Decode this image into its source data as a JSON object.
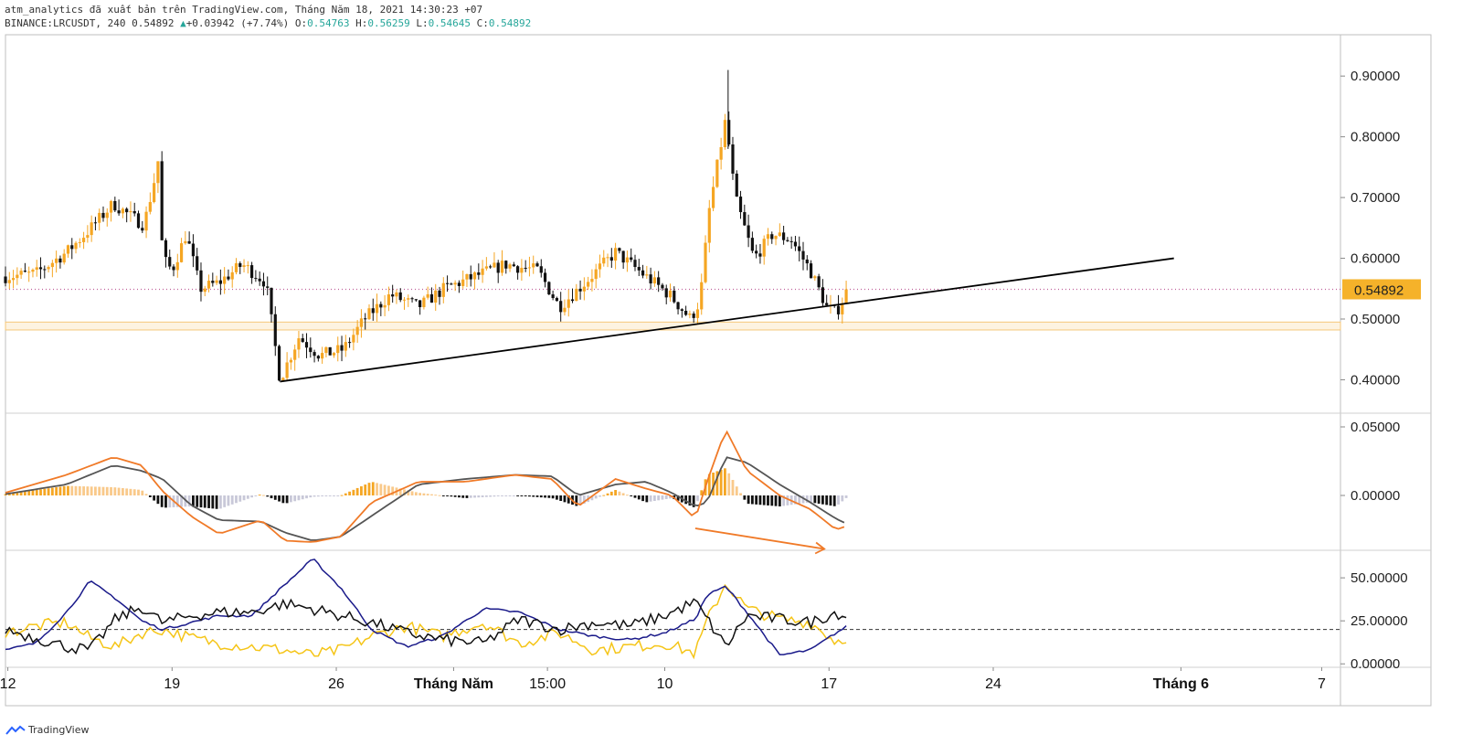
{
  "header": {
    "publisher_line": "atm_analytics đã xuất bản trên TradingView.com, Tháng Năm 18, 2021 14:30:23 +07",
    "symbol": "BINANCE:LRCUSDT, 240",
    "last": "0.54892",
    "change": "+0.03942 (+7.74%)",
    "o_label": "O:",
    "o_value": "0.54763",
    "h_label": "H:",
    "h_value": "0.56259",
    "l_label": "L:",
    "l_value": "0.54645",
    "c_label": "C:",
    "c_value": "0.54892"
  },
  "brand": {
    "label": "TradingView"
  },
  "colors": {
    "bull": "#f5a623",
    "bear": "#111111",
    "macd_line": "#f07a28",
    "signal_line": "#555555",
    "hist_pos": "#f5a623",
    "hist_neg": "#111111",
    "hist_faded": "#c8c8d8",
    "di_plus": "#f5c518",
    "di_minus": "#1a1a8a",
    "adx": "#111111",
    "support_band": "#f5c77a",
    "price_dot": "#c0609a",
    "price_tag_bg": "#f5b22a"
  },
  "chart_data": [
    {
      "type": "candlestick",
      "panel": "price",
      "y_ticks": [
        "0.90000",
        "0.80000",
        "0.70000",
        "0.60000",
        "0.50000",
        "0.40000"
      ],
      "ylim": [
        0.345,
        0.965
      ],
      "current_price_label": "0.54892",
      "current_price": 0.54892,
      "x_ticks": [
        {
          "label": "12",
          "day": 12
        },
        {
          "label": "19",
          "day": 19
        },
        {
          "label": "26",
          "day": 26
        },
        {
          "label": "Tháng Năm",
          "day": 31,
          "bold": true
        },
        {
          "label": "15:00",
          "day": 35
        },
        {
          "label": "10",
          "day": 40
        },
        {
          "label": "17",
          "day": 47
        },
        {
          "label": "24",
          "day": 54
        },
        {
          "label": "Tháng 6",
          "day": 62,
          "bold": true
        },
        {
          "label": "7",
          "day": 68
        }
      ],
      "xlim_days": [
        11.9,
        68.8
      ],
      "trendline": [
        {
          "day": 23.6,
          "price": 0.397
        },
        {
          "day": 61.7,
          "price": 0.6
        }
      ],
      "support_zone": [
        0.482,
        0.495
      ],
      "close_anchors": [
        [
          11.9,
          0.57
        ],
        [
          13.2,
          0.575
        ],
        [
          14.5,
          0.61
        ],
        [
          15.3,
          0.64
        ],
        [
          16.5,
          0.69
        ],
        [
          17.2,
          0.67
        ],
        [
          17.8,
          0.655
        ],
        [
          18.2,
          0.72
        ],
        [
          18.4,
          0.76
        ],
        [
          18.6,
          0.6
        ],
        [
          19.0,
          0.58
        ],
        [
          19.6,
          0.64
        ],
        [
          20.2,
          0.55
        ],
        [
          21.0,
          0.56
        ],
        [
          22.0,
          0.59
        ],
        [
          23.0,
          0.56
        ],
        [
          23.6,
          0.4
        ],
        [
          24.4,
          0.47
        ],
        [
          25.3,
          0.44
        ],
        [
          26.3,
          0.45
        ],
        [
          27.2,
          0.5
        ],
        [
          28.3,
          0.54
        ],
        [
          29.5,
          0.52
        ],
        [
          30.6,
          0.55
        ],
        [
          31.9,
          0.57
        ],
        [
          33.2,
          0.59
        ],
        [
          34.6,
          0.58
        ],
        [
          35.5,
          0.52
        ],
        [
          36.6,
          0.56
        ],
        [
          37.9,
          0.61
        ],
        [
          39.2,
          0.57
        ],
        [
          40.2,
          0.54
        ],
        [
          41.1,
          0.5
        ],
        [
          41.5,
          0.53
        ],
        [
          41.9,
          0.68
        ],
        [
          42.6,
          0.83
        ],
        [
          43.0,
          0.7
        ],
        [
          43.8,
          0.6
        ],
        [
          44.6,
          0.64
        ],
        [
          45.4,
          0.63
        ],
        [
          46.2,
          0.58
        ],
        [
          46.9,
          0.52
        ],
        [
          47.3,
          0.51
        ],
        [
          47.8,
          0.549
        ]
      ]
    },
    {
      "type": "line",
      "panel": "macd",
      "y_ticks": [
        "0.05000",
        "0.00000"
      ],
      "ylim": [
        -0.04,
        0.06
      ],
      "series": [
        {
          "role": "macd",
          "points": [
            [
              11.9,
              0.002
            ],
            [
              14.5,
              0.015
            ],
            [
              16.5,
              0.028
            ],
            [
              17.7,
              0.022
            ],
            [
              18.6,
              0.003
            ],
            [
              19.8,
              -0.015
            ],
            [
              21.0,
              -0.028
            ],
            [
              22.8,
              -0.018
            ],
            [
              23.8,
              -0.033
            ],
            [
              25.0,
              -0.034
            ],
            [
              26.2,
              -0.03
            ],
            [
              27.5,
              -0.005
            ],
            [
              29.5,
              0.01
            ],
            [
              31.5,
              0.01
            ],
            [
              33.6,
              0.015
            ],
            [
              35.2,
              0.012
            ],
            [
              36.3,
              -0.008
            ],
            [
              37.9,
              0.012
            ],
            [
              39.2,
              0.005
            ],
            [
              40.3,
              0.0
            ],
            [
              41.3,
              -0.017
            ],
            [
              41.8,
              0.01
            ],
            [
              42.6,
              0.048
            ],
            [
              43.5,
              0.018
            ],
            [
              44.9,
              0.0
            ],
            [
              46.2,
              -0.01
            ],
            [
              47.3,
              -0.025
            ],
            [
              47.8,
              -0.022
            ]
          ]
        },
        {
          "role": "signal",
          "points": [
            [
              11.9,
              0.001
            ],
            [
              14.5,
              0.008
            ],
            [
              16.5,
              0.022
            ],
            [
              17.7,
              0.018
            ],
            [
              18.6,
              0.012
            ],
            [
              19.8,
              -0.007
            ],
            [
              21.0,
              -0.018
            ],
            [
              22.8,
              -0.019
            ],
            [
              23.8,
              -0.027
            ],
            [
              25.0,
              -0.033
            ],
            [
              26.2,
              -0.03
            ],
            [
              27.5,
              -0.015
            ],
            [
              29.5,
              0.008
            ],
            [
              31.5,
              0.012
            ],
            [
              33.6,
              0.015
            ],
            [
              35.2,
              0.014
            ],
            [
              36.3,
              0.0
            ],
            [
              37.9,
              0.008
            ],
            [
              39.2,
              0.01
            ],
            [
              40.3,
              0.002
            ],
            [
              41.3,
              -0.008
            ],
            [
              41.8,
              -0.005
            ],
            [
              42.6,
              0.028
            ],
            [
              43.5,
              0.024
            ],
            [
              44.9,
              0.008
            ],
            [
              46.2,
              -0.005
            ],
            [
              47.3,
              -0.017
            ],
            [
              47.8,
              -0.021
            ]
          ]
        }
      ],
      "annotation": "divergence-arrow"
    },
    {
      "type": "line",
      "panel": "dmi",
      "y_ticks": [
        "50.00000",
        "25.00000",
        "0.00000"
      ],
      "ylim": [
        -2,
        66
      ],
      "dashed_level": 20,
      "series": [
        {
          "role": "+DI",
          "points": [
            [
              11.9,
              18
            ],
            [
              13.2,
              22
            ],
            [
              14.5,
              24
            ],
            [
              15.5,
              15
            ],
            [
              16.6,
              10
            ],
            [
              17.7,
              18
            ],
            [
              18.6,
              20
            ],
            [
              19.8,
              15
            ],
            [
              21.0,
              12
            ],
            [
              22.4,
              10
            ],
            [
              23.8,
              8
            ],
            [
              25.0,
              5
            ],
            [
              26.2,
              8
            ],
            [
              27.5,
              16
            ],
            [
              29.0,
              22
            ],
            [
              30.5,
              16
            ],
            [
              32.3,
              24
            ],
            [
              33.8,
              12
            ],
            [
              35.5,
              18
            ],
            [
              37.0,
              8
            ],
            [
              38.5,
              10
            ],
            [
              40.0,
              12
            ],
            [
              41.3,
              6
            ],
            [
              41.8,
              25
            ],
            [
              42.6,
              47
            ],
            [
              43.5,
              32
            ],
            [
              44.9,
              26
            ],
            [
              46.2,
              24
            ],
            [
              47.3,
              13
            ],
            [
              47.8,
              16
            ]
          ]
        },
        {
          "role": "-DI",
          "points": [
            [
              11.9,
              8
            ],
            [
              13.2,
              12
            ],
            [
              14.5,
              30
            ],
            [
              15.5,
              48
            ],
            [
              16.6,
              38
            ],
            [
              17.7,
              25
            ],
            [
              18.6,
              20
            ],
            [
              19.8,
              24
            ],
            [
              21.0,
              28
            ],
            [
              22.4,
              28
            ],
            [
              23.8,
              46
            ],
            [
              25.0,
              61
            ],
            [
              26.2,
              44
            ],
            [
              27.5,
              20
            ],
            [
              29.0,
              10
            ],
            [
              30.5,
              16
            ],
            [
              32.3,
              32
            ],
            [
              33.8,
              30
            ],
            [
              35.5,
              20
            ],
            [
              37.0,
              16
            ],
            [
              38.5,
              14
            ],
            [
              40.0,
              18
            ],
            [
              41.3,
              26
            ],
            [
              41.8,
              40
            ],
            [
              42.6,
              45
            ],
            [
              43.5,
              30
            ],
            [
              44.9,
              5
            ],
            [
              46.2,
              8
            ],
            [
              47.3,
              18
            ],
            [
              47.8,
              22
            ]
          ]
        },
        {
          "role": "ADX",
          "points": [
            [
              11.9,
              20
            ],
            [
              13.2,
              15
            ],
            [
              14.5,
              10
            ],
            [
              15.5,
              8
            ],
            [
              16.6,
              26
            ],
            [
              17.7,
              33
            ],
            [
              18.6,
              24
            ],
            [
              19.8,
              28
            ],
            [
              21.0,
              30
            ],
            [
              22.4,
              30
            ],
            [
              23.8,
              35
            ],
            [
              25.0,
              32
            ],
            [
              26.2,
              28
            ],
            [
              27.5,
              24
            ],
            [
              29.0,
              18
            ],
            [
              30.5,
              14
            ],
            [
              32.3,
              12
            ],
            [
              33.8,
              26
            ],
            [
              35.5,
              20
            ],
            [
              37.0,
              24
            ],
            [
              38.5,
              22
            ],
            [
              40.0,
              28
            ],
            [
              41.3,
              36
            ],
            [
              41.8,
              26
            ],
            [
              42.6,
              10
            ],
            [
              43.5,
              28
            ],
            [
              44.9,
              26
            ],
            [
              46.2,
              24
            ],
            [
              47.3,
              30
            ],
            [
              47.8,
              27
            ]
          ]
        }
      ]
    }
  ]
}
